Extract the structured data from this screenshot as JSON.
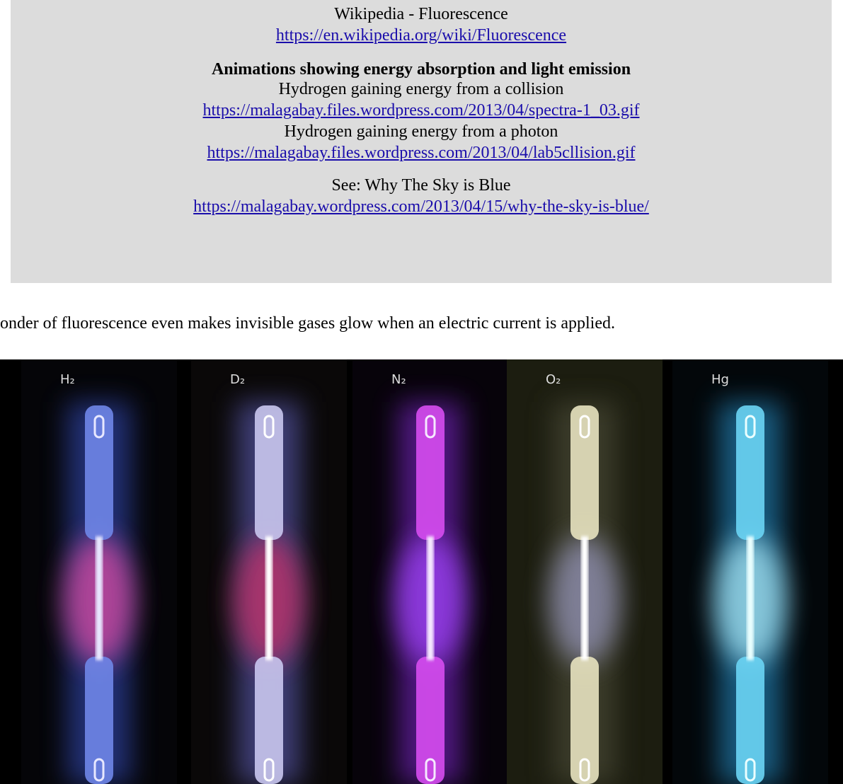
{
  "header": {
    "title": "Wikipedia - Fluorescence",
    "url": "https://en.wikipedia.org/wiki/Fluorescence"
  },
  "section": {
    "heading": "Animations showing energy absorption and light emission",
    "items": [
      {
        "text": "Hydrogen gaining energy from a collision",
        "url": "https://malagabay.files.wordpress.com/2013/04/spectra-1_03.gif"
      },
      {
        "text": "Hydrogen gaining energy from a photon",
        "url": "https://malagabay.files.wordpress.com/2013/04/lab5cllision.gif"
      }
    ]
  },
  "see": {
    "text": "See: Why The Sky is Blue",
    "url": "https://malagabay.wordpress.com/2013/04/15/why-the-sky-is-blue/"
  },
  "body": {
    "sentence": "onder of fluorescence even makes invisible gases glow when an electric current is applied."
  },
  "image": {
    "labels": [
      "H₂",
      "D₂",
      "N₂",
      "O₂",
      "Hg"
    ]
  }
}
